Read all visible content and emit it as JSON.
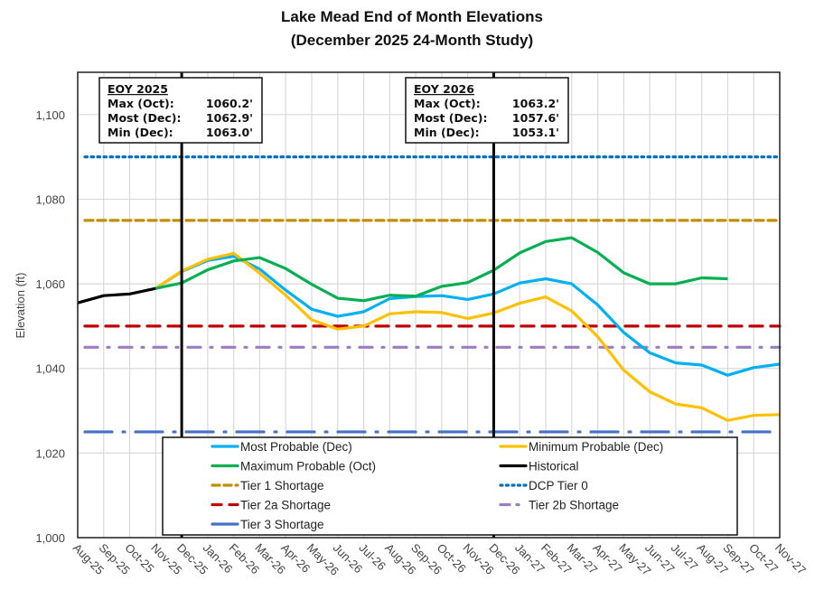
{
  "chart_data": {
    "type": "line",
    "title": "Lake Mead End of Month Elevations",
    "subtitle": "(December 2025 24-Month Study)",
    "xlabel": "",
    "ylabel": "Elevation (ft)",
    "ylim": [
      1000,
      1110
    ],
    "yticks": [
      1000,
      1020,
      1040,
      1060,
      1080,
      1100
    ],
    "ytick_labels": [
      "1,000",
      "1,020",
      "1,040",
      "1,060",
      "1,080",
      "1,100"
    ],
    "grid": true,
    "categories": [
      "Aug-25",
      "Sep-25",
      "Oct-25",
      "Nov-25",
      "Dec-25",
      "Jan-26",
      "Feb-26",
      "Mar-26",
      "Apr-26",
      "May-26",
      "Jun-26",
      "Jul-26",
      "Aug-26",
      "Sep-26",
      "Oct-26",
      "Nov-26",
      "Dec-26",
      "Jan-27",
      "Feb-27",
      "Mar-27",
      "Apr-27",
      "May-27",
      "Jun-27",
      "Jul-27",
      "Aug-27",
      "Sep-27",
      "Oct-27",
      "Nov-27"
    ],
    "series": [
      {
        "name": "Most Probable (Dec)",
        "color": "#00b0f0",
        "style": "solid",
        "values": [
          null,
          null,
          null,
          1058.9,
          1062.9,
          1065.5,
          1066.5,
          1063.5,
          1058.5,
          1054.0,
          1052.3,
          1053.4,
          1056.5,
          1057.0,
          1057.2,
          1056.3,
          1057.6,
          1060.2,
          1061.2,
          1060.0,
          1055.0,
          1048.5,
          1043.7,
          1041.3,
          1040.8,
          1038.4,
          1040.2,
          1041.0
        ]
      },
      {
        "name": "Minimum Probable (Dec)",
        "color": "#ffc000",
        "style": "solid",
        "values": [
          null,
          null,
          null,
          1058.9,
          1063.0,
          1065.8,
          1067.2,
          1062.5,
          1057.3,
          1051.5,
          1049.3,
          1050.0,
          1052.9,
          1053.4,
          1053.2,
          1051.8,
          1053.1,
          1055.4,
          1056.9,
          1053.6,
          1047.5,
          1039.6,
          1034.5,
          1031.6,
          1030.7,
          1027.7,
          1028.9,
          1029.1
        ]
      },
      {
        "name": "Maximum Probable (Oct)",
        "color": "#00b050",
        "style": "solid",
        "values": [
          null,
          null,
          null,
          1058.9,
          1060.2,
          1063.3,
          1065.4,
          1066.2,
          1063.6,
          1059.9,
          1056.6,
          1056.0,
          1057.3,
          1057.1,
          1059.4,
          1060.3,
          1063.2,
          1067.3,
          1070.0,
          1070.9,
          1067.4,
          1062.6,
          1060.0,
          1060.0,
          1061.4,
          1061.2,
          null,
          null
        ]
      },
      {
        "name": "Historical",
        "color": "#000000",
        "style": "solid",
        "values": [
          1055.5,
          1057.2,
          1057.6,
          1058.9,
          null,
          null,
          null,
          null,
          null,
          null,
          null,
          null,
          null,
          null,
          null,
          null,
          null,
          null,
          null,
          null,
          null,
          null,
          null,
          null,
          null,
          null,
          null,
          null
        ]
      }
    ],
    "thresholds": [
      {
        "name": "Tier 1 Shortage",
        "value": 1075,
        "color": "#bf8f00",
        "style": "dash"
      },
      {
        "name": "DCP Tier 0",
        "value": 1090,
        "color": "#0070c0",
        "style": "dot"
      },
      {
        "name": "Tier 2a Shortage",
        "value": 1050,
        "color": "#c00000",
        "style": "long-dash"
      },
      {
        "name": "Tier 2b Shortage",
        "value": 1045,
        "color": "#9e7cc1",
        "style": "dash-dot"
      },
      {
        "name": "Tier 3 Shortage",
        "value": 1025,
        "color": "#4472c4",
        "style": "long-dash-dot"
      }
    ],
    "vertical_markers": [
      "Dec-25",
      "Dec-26"
    ],
    "annotations": [
      {
        "title": "EOY 2025",
        "at": "Dec-25",
        "lines": [
          {
            "label": "Max (Oct):",
            "value": "1060.2'"
          },
          {
            "label": "Most (Dec):",
            "value": "1062.9'"
          },
          {
            "label": "Min (Dec):",
            "value": "1063.0'"
          }
        ]
      },
      {
        "title": "EOY 2026",
        "at": "Dec-26",
        "lines": [
          {
            "label": "Max (Oct):",
            "value": "1063.2'"
          },
          {
            "label": "Most (Dec):",
            "value": "1057.6'"
          },
          {
            "label": "Min (Dec):",
            "value": "1053.1'"
          }
        ]
      }
    ],
    "legend": {
      "placement": "bottom-center-inside",
      "entries": [
        "Most Probable (Dec)",
        "Minimum Probable (Dec)",
        "Maximum Probable (Oct)",
        "Historical",
        "Tier 1 Shortage",
        "DCP Tier 0",
        "Tier 2a Shortage",
        "Tier 2b Shortage",
        "Tier 3 Shortage"
      ]
    }
  }
}
